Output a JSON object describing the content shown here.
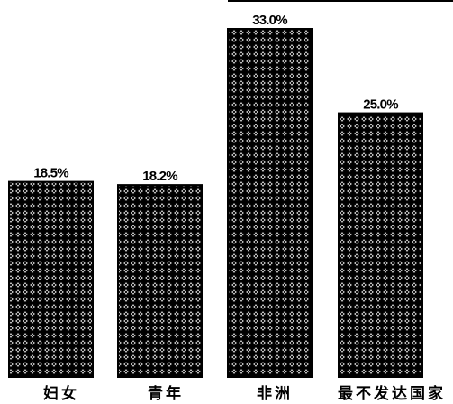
{
  "chart_data": {
    "type": "bar",
    "categories": [
      "妇女",
      "青年",
      "非洲",
      "最不发达国家"
    ],
    "values": [
      18.5,
      18.2,
      33.0,
      25.0
    ],
    "data_labels": [
      "18.5%",
      "18.2%",
      "33.0%",
      "25.0%"
    ],
    "title": "",
    "xlabel": "",
    "ylabel": "",
    "ylim": [
      0,
      33.0
    ],
    "grid": false,
    "legend": "none",
    "bar_pattern": "crosshatch",
    "colors": {
      "bar_fill": "#ffffff",
      "bar_pattern": "#000000",
      "bar_outline": "#000000",
      "top_rule": "#000000"
    }
  }
}
